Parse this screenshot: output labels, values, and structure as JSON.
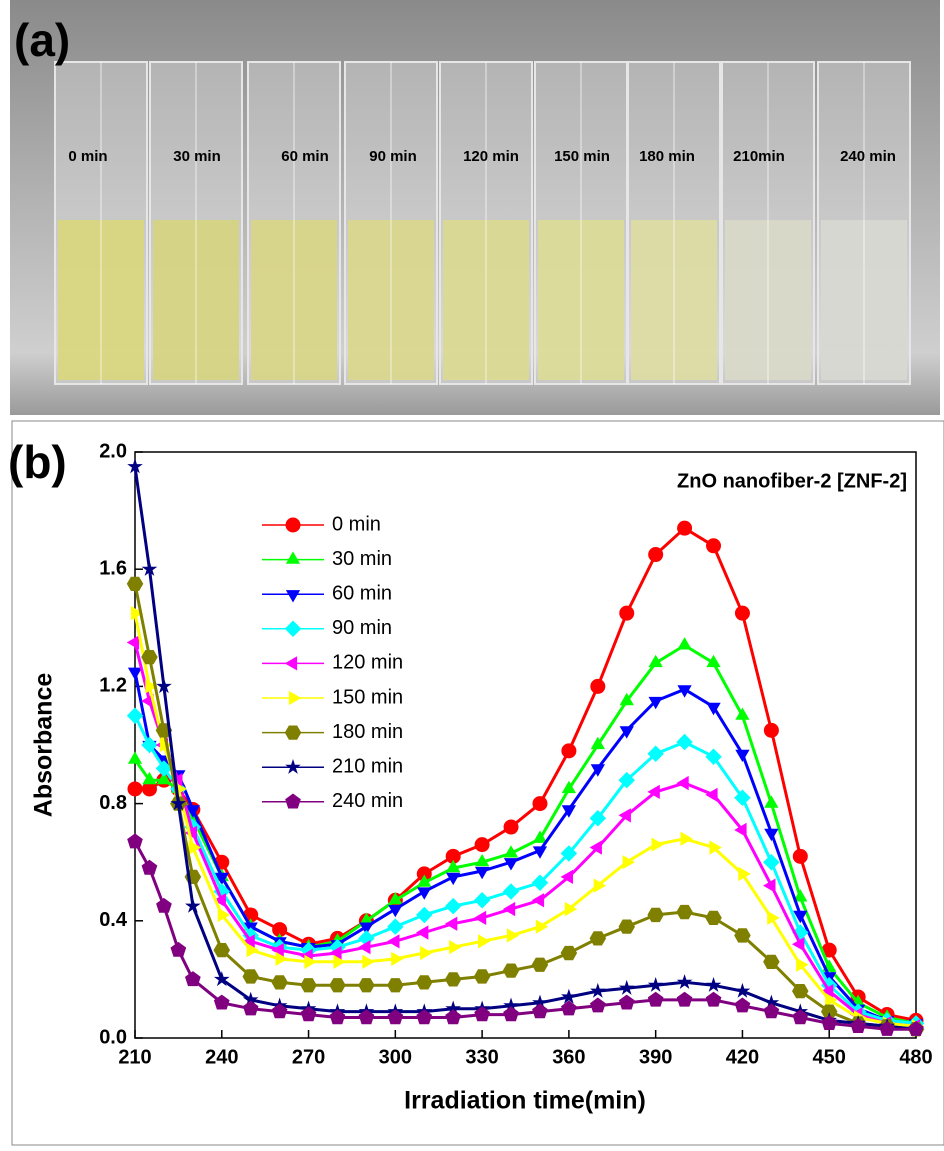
{
  "panel_a": {
    "label": "(a)",
    "samples": [
      "0 min",
      "30 min",
      "60 min",
      "90 min",
      "120 min",
      "150 min",
      "180 min",
      "210min",
      "240 min"
    ]
  },
  "chart_data": {
    "type": "line",
    "panel_label": "(b)",
    "title": "ZnO nanofiber-2 [ZNF-2]",
    "x_label": "Irradiation time(min)",
    "y_label": "Absorbance",
    "xlim": [
      210,
      480
    ],
    "ylim": [
      0,
      2
    ],
    "xticks": [
      210,
      240,
      270,
      300,
      330,
      360,
      390,
      420,
      450,
      480
    ],
    "yticks": [
      {
        "value": 0,
        "label": "0.0"
      },
      0.4,
      0.8,
      1.2,
      1.6,
      {
        "value": 2,
        "label": "2.0"
      }
    ],
    "legend": "upper-left",
    "x": [
      210,
      215,
      220,
      225,
      230,
      240,
      250,
      260,
      270,
      280,
      290,
      300,
      310,
      320,
      330,
      340,
      350,
      360,
      370,
      380,
      390,
      400,
      410,
      420,
      430,
      440,
      450,
      460,
      470,
      480
    ],
    "series": [
      {
        "name": "0 min",
        "color": "#ff0000",
        "marker": "circle",
        "values": [
          0.85,
          0.85,
          0.88,
          0.85,
          0.78,
          0.6,
          0.42,
          0.37,
          0.32,
          0.34,
          0.4,
          0.47,
          0.56,
          0.62,
          0.66,
          0.72,
          0.8,
          0.98,
          1.2,
          1.45,
          1.65,
          1.74,
          1.68,
          1.45,
          1.05,
          0.62,
          0.3,
          0.14,
          0.08,
          0.06
        ]
      },
      {
        "name": "30 min",
        "color": "#00ff00",
        "marker": "triangle-up",
        "values": [
          0.95,
          0.88,
          0.88,
          0.85,
          0.75,
          0.55,
          0.38,
          0.33,
          0.31,
          0.33,
          0.4,
          0.47,
          0.53,
          0.58,
          0.6,
          0.63,
          0.68,
          0.85,
          1.0,
          1.15,
          1.28,
          1.34,
          1.28,
          1.1,
          0.8,
          0.48,
          0.24,
          0.12,
          0.07,
          0.05
        ]
      },
      {
        "name": "60 min",
        "color": "#0000ff",
        "marker": "triangle-down",
        "values": [
          1.25,
          1.0,
          0.95,
          0.9,
          0.78,
          0.55,
          0.38,
          0.33,
          0.31,
          0.32,
          0.38,
          0.44,
          0.5,
          0.55,
          0.57,
          0.6,
          0.64,
          0.78,
          0.92,
          1.05,
          1.15,
          1.19,
          1.13,
          0.97,
          0.7,
          0.42,
          0.21,
          0.1,
          0.06,
          0.05
        ]
      },
      {
        "name": "90 min",
        "color": "#00ffff",
        "marker": "diamond",
        "values": [
          1.1,
          1.0,
          0.92,
          0.85,
          0.72,
          0.5,
          0.35,
          0.31,
          0.3,
          0.31,
          0.34,
          0.38,
          0.42,
          0.45,
          0.47,
          0.5,
          0.53,
          0.63,
          0.75,
          0.88,
          0.97,
          1.01,
          0.96,
          0.82,
          0.6,
          0.36,
          0.18,
          0.09,
          0.06,
          0.05
        ]
      },
      {
        "name": "120 min",
        "color": "#ff00ff",
        "marker": "triangle-left",
        "values": [
          1.35,
          1.15,
          1.0,
          0.88,
          0.7,
          0.47,
          0.33,
          0.3,
          0.28,
          0.29,
          0.31,
          0.33,
          0.36,
          0.39,
          0.41,
          0.44,
          0.47,
          0.55,
          0.65,
          0.76,
          0.84,
          0.87,
          0.83,
          0.71,
          0.52,
          0.32,
          0.16,
          0.08,
          0.05,
          0.04
        ]
      },
      {
        "name": "150 min",
        "color": "#ffff00",
        "marker": "triangle-right",
        "values": [
          1.45,
          1.2,
          1.0,
          0.85,
          0.65,
          0.42,
          0.3,
          0.27,
          0.26,
          0.26,
          0.26,
          0.27,
          0.29,
          0.31,
          0.33,
          0.35,
          0.38,
          0.44,
          0.52,
          0.6,
          0.66,
          0.68,
          0.65,
          0.56,
          0.41,
          0.25,
          0.13,
          0.07,
          0.05,
          0.04
        ]
      },
      {
        "name": "180 min",
        "color": "#808000",
        "marker": "hexagon",
        "values": [
          1.55,
          1.3,
          1.05,
          0.8,
          0.55,
          0.3,
          0.21,
          0.19,
          0.18,
          0.18,
          0.18,
          0.18,
          0.19,
          0.2,
          0.21,
          0.23,
          0.25,
          0.29,
          0.34,
          0.38,
          0.42,
          0.43,
          0.41,
          0.35,
          0.26,
          0.16,
          0.09,
          0.05,
          0.04,
          0.03
        ]
      },
      {
        "name": "210 min",
        "color": "#000080",
        "marker": "star",
        "values": [
          1.95,
          1.6,
          1.2,
          0.8,
          0.45,
          0.2,
          0.13,
          0.11,
          0.1,
          0.09,
          0.09,
          0.09,
          0.09,
          0.1,
          0.1,
          0.11,
          0.12,
          0.14,
          0.16,
          0.17,
          0.18,
          0.19,
          0.18,
          0.16,
          0.12,
          0.09,
          0.06,
          0.05,
          0.04,
          0.03
        ]
      },
      {
        "name": "240 min",
        "color": "#800080",
        "marker": "pentagon",
        "values": [
          0.67,
          0.58,
          0.45,
          0.3,
          0.2,
          0.12,
          0.1,
          0.09,
          0.08,
          0.07,
          0.07,
          0.07,
          0.07,
          0.07,
          0.08,
          0.08,
          0.09,
          0.1,
          0.11,
          0.12,
          0.13,
          0.13,
          0.13,
          0.11,
          0.09,
          0.07,
          0.05,
          0.04,
          0.03,
          0.03
        ]
      }
    ]
  }
}
